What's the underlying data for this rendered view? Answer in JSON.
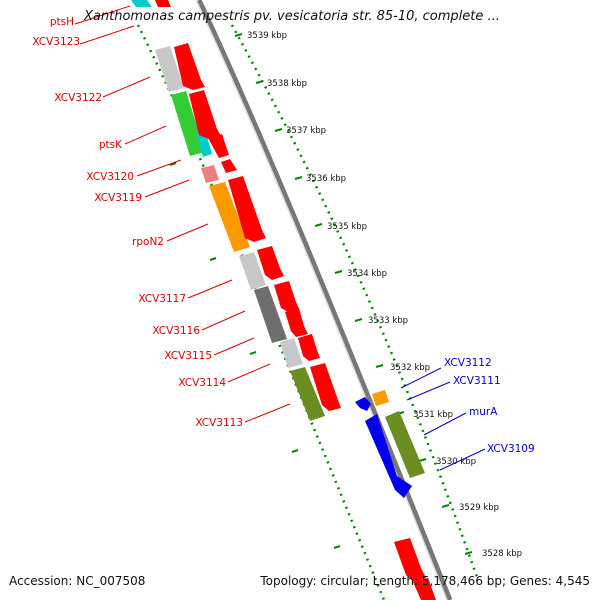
{
  "title": "Xanthomonas campestris pv. vesicatoria str. 85-10, complete ...",
  "accession_label": "Accession: NC_007508",
  "summary_label": "Topology: circular; Length: 5,178,466 bp; Genes: 4,545",
  "colors": {
    "red": "#ff0000",
    "pink": "#f08080",
    "cyan": "#00cccc",
    "green": "#33cc33",
    "orange": "#ff9900",
    "light_gray": "#c8c8c8",
    "dark_gray": "#6e6e6e",
    "olive": "#6b8e23",
    "blue": "#0000ee",
    "label_red": "#dd0000",
    "label_blue": "#0000cc",
    "scale_dots": "#008800"
  },
  "scale_ticks": [
    "3539 kbp",
    "3538 kbp",
    "3537 kbp",
    "3536 kbp",
    "3535 kbp",
    "3534 kbp",
    "3533 kbp",
    "3532 kbp",
    "3531 kbp",
    "3530 kbp",
    "3529 kbp",
    "3528 kbp"
  ],
  "left_gene_labels": [
    "ptsH",
    "XCV3123",
    "XCV3122",
    "ptsK",
    "XCV3120",
    "XCV3119",
    "rpoN2",
    "XCV3117",
    "XCV3116",
    "XCV3115",
    "XCV3114",
    "XCV3113"
  ],
  "right_gene_labels": [
    "XCV3112",
    "XCV3111",
    "murA",
    "XCV3109"
  ]
}
